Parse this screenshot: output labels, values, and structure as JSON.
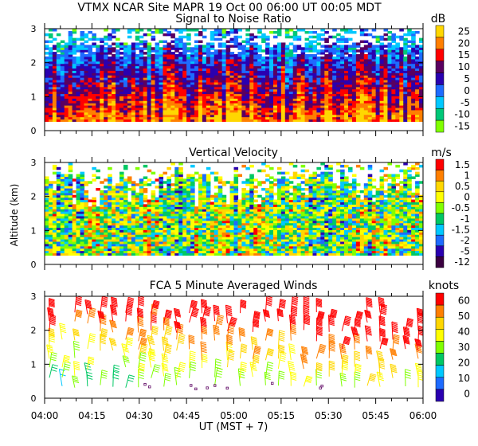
{
  "header": {
    "line": "VTMX  NCAR Site  MAPR 19 Oct 00  06:00 UT  00:05  MDT"
  },
  "axes": {
    "ylabel": "Altitude (km)",
    "xlabel": "UT  (MST + 7)",
    "y_ticks": [
      "0",
      "1",
      "2",
      "3"
    ],
    "x_ticks": [
      "04:00",
      "04:15",
      "04:30",
      "04:45",
      "05:00",
      "05:15",
      "05:30",
      "05:45",
      "06:00"
    ]
  },
  "chart_data": [
    {
      "type": "heatmap",
      "title": "Signal to Noise Ratio",
      "unit": "dB",
      "xlim": [
        "04:00",
        "06:00"
      ],
      "ylim": [
        0,
        3
      ],
      "data_altitude_range_km": [
        0.25,
        3.0
      ],
      "colorbar": {
        "labels": [
          "25",
          "20",
          "15",
          "10",
          "5",
          "0",
          "-5",
          "-10",
          "-15"
        ],
        "colors": [
          "#ffd700",
          "#ff7f00",
          "#ff0000",
          "#5a0060",
          "#2a00b0",
          "#1e6bff",
          "#00c8ff",
          "#00c878",
          "#80ff00"
        ]
      }
    },
    {
      "type": "heatmap",
      "title": "Vertical Velocity",
      "unit": "m/s",
      "xlim": [
        "04:00",
        "06:00"
      ],
      "ylim": [
        0,
        3
      ],
      "colorbar": {
        "labels": [
          "1.5",
          "1",
          "0.5",
          "0",
          "-0.5",
          "-1",
          "-1.5",
          "-2",
          "-5",
          "-12"
        ],
        "colors": [
          "#ff0000",
          "#ff7f00",
          "#ffd700",
          "#ffff00",
          "#80ff00",
          "#00c864",
          "#00c8ff",
          "#1e6bff",
          "#2a00b0",
          "#3a0040"
        ]
      }
    },
    {
      "type": "scatter",
      "title": "FCA 5 Minute Averaged Winds",
      "unit": "knots",
      "xlim": [
        "04:00",
        "06:00"
      ],
      "ylim": [
        0,
        3
      ],
      "colorbar": {
        "labels": [
          "60",
          "50",
          "40",
          "30",
          "20",
          "10",
          "0"
        ],
        "colors": [
          "#ff0000",
          "#ff7f00",
          "#ffd700",
          "#ffff00",
          "#80ff00",
          "#00c864",
          "#00c8ff",
          "#1e6bff",
          "#2a00b0"
        ]
      }
    }
  ]
}
